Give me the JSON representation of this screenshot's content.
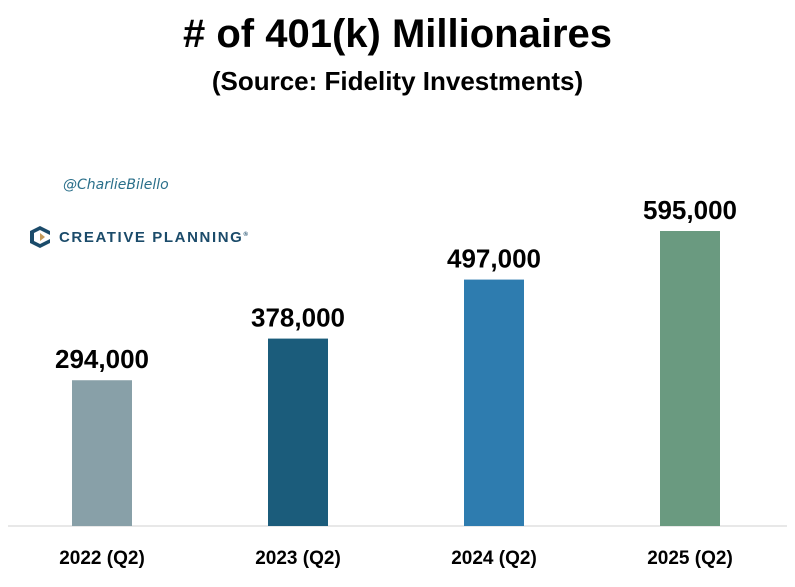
{
  "header": {
    "title": "# of 401(k) Millionaires",
    "subtitle": "(Source: Fidelity Investments)"
  },
  "watermark": {
    "handle": "@CharlieBilello",
    "brand": "CREATIVE PLANNING",
    "brand_icon": "creative-planning-logo-icon"
  },
  "chart_data": {
    "type": "bar",
    "title": "# of 401(k) Millionaires",
    "subtitle": "(Source: Fidelity Investments)",
    "categories": [
      "2022 (Q2)",
      "2023 (Q2)",
      "2024 (Q2)",
      "2025 (Q2)"
    ],
    "values": [
      294000,
      378000,
      497000,
      595000
    ],
    "value_labels": [
      "294,000",
      "378,000",
      "497,000",
      "595,000"
    ],
    "colors": [
      "#88a0a8",
      "#1b5c7b",
      "#2e7caf",
      "#6a9a80"
    ],
    "ylim": [
      0,
      595000
    ],
    "grid": false,
    "legend": "none"
  }
}
